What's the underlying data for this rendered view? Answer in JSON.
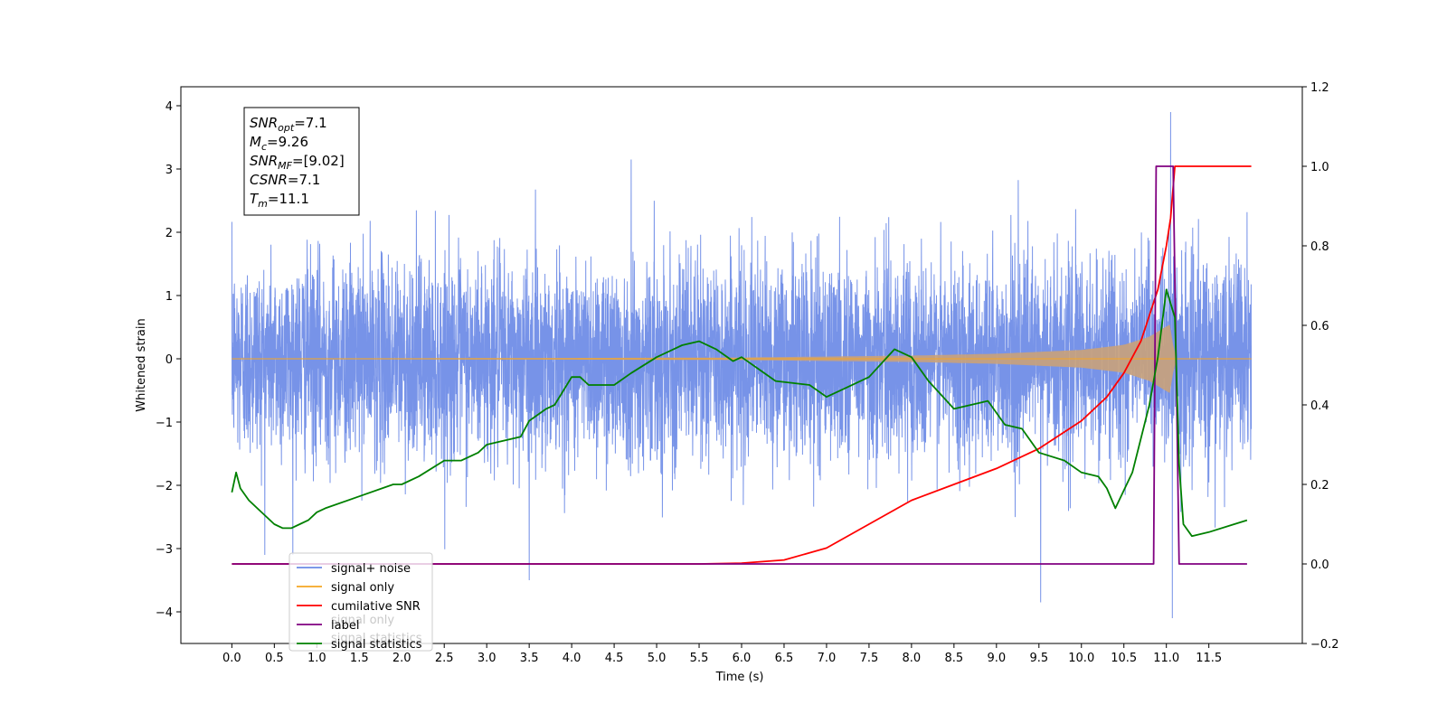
{
  "colors": {
    "signal_noise": "#6b8ae6",
    "signal_only": "#f5a623",
    "cumulative_snr": "#ff0000",
    "label": "#800080",
    "signal_statistics": "#008000",
    "overlap": "#c9a27a"
  },
  "chart_data": {
    "type": "line",
    "title": "",
    "xlabel": "Time (s)",
    "ylabel": "Whitened strain",
    "y2label": "",
    "xlim": [
      -0.6,
      12.6
    ],
    "ylim": [
      -4.5,
      4.3
    ],
    "y2lim": [
      -0.2,
      1.2
    ],
    "x_ticks": [
      0.0,
      0.5,
      1.0,
      1.5,
      2.0,
      2.5,
      3.0,
      3.5,
      4.0,
      4.5,
      5.0,
      5.5,
      6.0,
      6.5,
      7.0,
      7.5,
      8.0,
      8.5,
      9.0,
      9.5,
      10.0,
      10.5,
      11.0,
      11.5
    ],
    "x_tick_labels": [
      "0.0",
      "0.5",
      "1.0",
      "1.5",
      "2.0",
      "2.5",
      "3.0",
      "3.5",
      "4.0",
      "4.5",
      "5.0",
      "5.5",
      "6.0",
      "6.5",
      "7.0",
      "7.5",
      "8.0",
      "8.5",
      "9.0",
      "9.5",
      "10.0",
      "10.5",
      "11.0",
      "11.5"
    ],
    "y_ticks": [
      -4,
      -3,
      -2,
      -1,
      0,
      1,
      2,
      3,
      4
    ],
    "y_tick_labels": [
      "−4",
      "−3",
      "−2",
      "−1",
      "0",
      "1",
      "2",
      "3",
      "4"
    ],
    "y2_ticks": [
      -0.2,
      0.0,
      0.2,
      0.4,
      0.6,
      0.8,
      1.0,
      1.2
    ],
    "y2_tick_labels": [
      "−0.2",
      "0.0",
      "0.2",
      "0.4",
      "0.6",
      "0.8",
      "1.0",
      "1.2"
    ],
    "grid": false,
    "legend_position": "lower-left",
    "series": [
      {
        "name": "signal+ noise",
        "axis": "left",
        "kind": "noise",
        "x_range": [
          0.0,
          12.0
        ],
        "band": [
          -2.2,
          2.3
        ],
        "notable_extremes": [
          {
            "x": 4.7,
            "y": 3.15
          },
          {
            "x": 11.05,
            "y": 3.9
          },
          {
            "x": 11.07,
            "y": -4.1
          },
          {
            "x": 9.52,
            "y": -3.85
          },
          {
            "x": 3.5,
            "y": -3.5
          }
        ]
      },
      {
        "name": "signal only",
        "axis": "left",
        "kind": "chirp",
        "x_range": [
          0.0,
          12.0
        ],
        "envelope": [
          [
            0.0,
            0.0
          ],
          [
            6.0,
            0.02
          ],
          [
            8.0,
            0.05
          ],
          [
            9.0,
            0.08
          ],
          [
            10.0,
            0.14
          ],
          [
            10.5,
            0.22
          ],
          [
            10.8,
            0.35
          ],
          [
            11.05,
            0.55
          ],
          [
            11.1,
            0.0
          ],
          [
            12.0,
            0.0
          ]
        ]
      },
      {
        "name": "cumilative SNR",
        "axis": "right",
        "x": [
          0.0,
          5.5,
          6.0,
          6.5,
          7.0,
          7.5,
          8.0,
          8.5,
          9.0,
          9.5,
          10.0,
          10.3,
          10.5,
          10.7,
          10.9,
          11.0,
          11.05,
          11.1,
          11.2,
          12.0
        ],
        "y": [
          0.0,
          0.0,
          0.002,
          0.01,
          0.04,
          0.1,
          0.16,
          0.2,
          0.24,
          0.29,
          0.36,
          0.42,
          0.48,
          0.56,
          0.69,
          0.8,
          0.87,
          1.0,
          1.0,
          1.0
        ]
      },
      {
        "name": "label",
        "axis": "right",
        "x": [
          0.0,
          10.85,
          10.88,
          11.08,
          11.15,
          11.95
        ],
        "y": [
          0.0,
          0.0,
          1.0,
          1.0,
          0.0,
          0.0
        ]
      },
      {
        "name": "signal statistics",
        "axis": "right",
        "x": [
          0.0,
          0.05,
          0.1,
          0.2,
          0.3,
          0.5,
          0.6,
          0.7,
          0.8,
          0.9,
          1.0,
          1.1,
          1.5,
          1.9,
          2.0,
          2.2,
          2.5,
          2.7,
          2.9,
          3.0,
          3.2,
          3.4,
          3.5,
          3.7,
          3.8,
          4.0,
          4.1,
          4.2,
          4.5,
          4.7,
          5.0,
          5.2,
          5.3,
          5.5,
          5.7,
          5.9,
          6.0,
          6.2,
          6.4,
          6.8,
          7.0,
          7.2,
          7.5,
          7.8,
          8.0,
          8.2,
          8.5,
          8.9,
          9.1,
          9.3,
          9.5,
          9.8,
          10.0,
          10.2,
          10.3,
          10.4,
          10.6,
          10.8,
          10.9,
          11.0,
          11.1,
          11.15,
          11.2,
          11.3,
          11.5,
          11.8,
          11.95
        ],
        "y": [
          0.18,
          0.23,
          0.19,
          0.16,
          0.14,
          0.1,
          0.09,
          0.09,
          0.1,
          0.11,
          0.13,
          0.14,
          0.17,
          0.2,
          0.2,
          0.22,
          0.26,
          0.26,
          0.28,
          0.3,
          0.31,
          0.32,
          0.36,
          0.39,
          0.4,
          0.47,
          0.47,
          0.45,
          0.45,
          0.48,
          0.52,
          0.54,
          0.55,
          0.56,
          0.54,
          0.51,
          0.52,
          0.49,
          0.46,
          0.45,
          0.42,
          0.44,
          0.47,
          0.54,
          0.52,
          0.46,
          0.39,
          0.41,
          0.35,
          0.34,
          0.28,
          0.26,
          0.23,
          0.22,
          0.19,
          0.14,
          0.23,
          0.4,
          0.52,
          0.69,
          0.62,
          0.25,
          0.1,
          0.07,
          0.08,
          0.1,
          0.11
        ]
      }
    ],
    "annotation": {
      "lines": [
        {
          "name": "SNR",
          "sub": "opt",
          "value": "=7.1"
        },
        {
          "name": "M",
          "sub": "c",
          "value": "=9.26"
        },
        {
          "name": "SNR",
          "sub": "MF",
          "value": "=[9.02]"
        },
        {
          "name": "CSNR",
          "sub": "",
          "value": "=7.1"
        },
        {
          "name": "T",
          "sub": "m",
          "value": "=11.1"
        }
      ]
    }
  },
  "legend": {
    "items": [
      {
        "label": "signal+ noise",
        "color": "#6b8ae6"
      },
      {
        "label": "signal only",
        "color": "#f5a623"
      },
      {
        "label": "cumilative SNR",
        "color": "#ff0000"
      },
      {
        "label": "label",
        "color": "#800080"
      },
      {
        "label": "signal statistics",
        "color": "#008000"
      }
    ],
    "ghost_text": [
      "signal only",
      "signal statistics"
    ]
  }
}
